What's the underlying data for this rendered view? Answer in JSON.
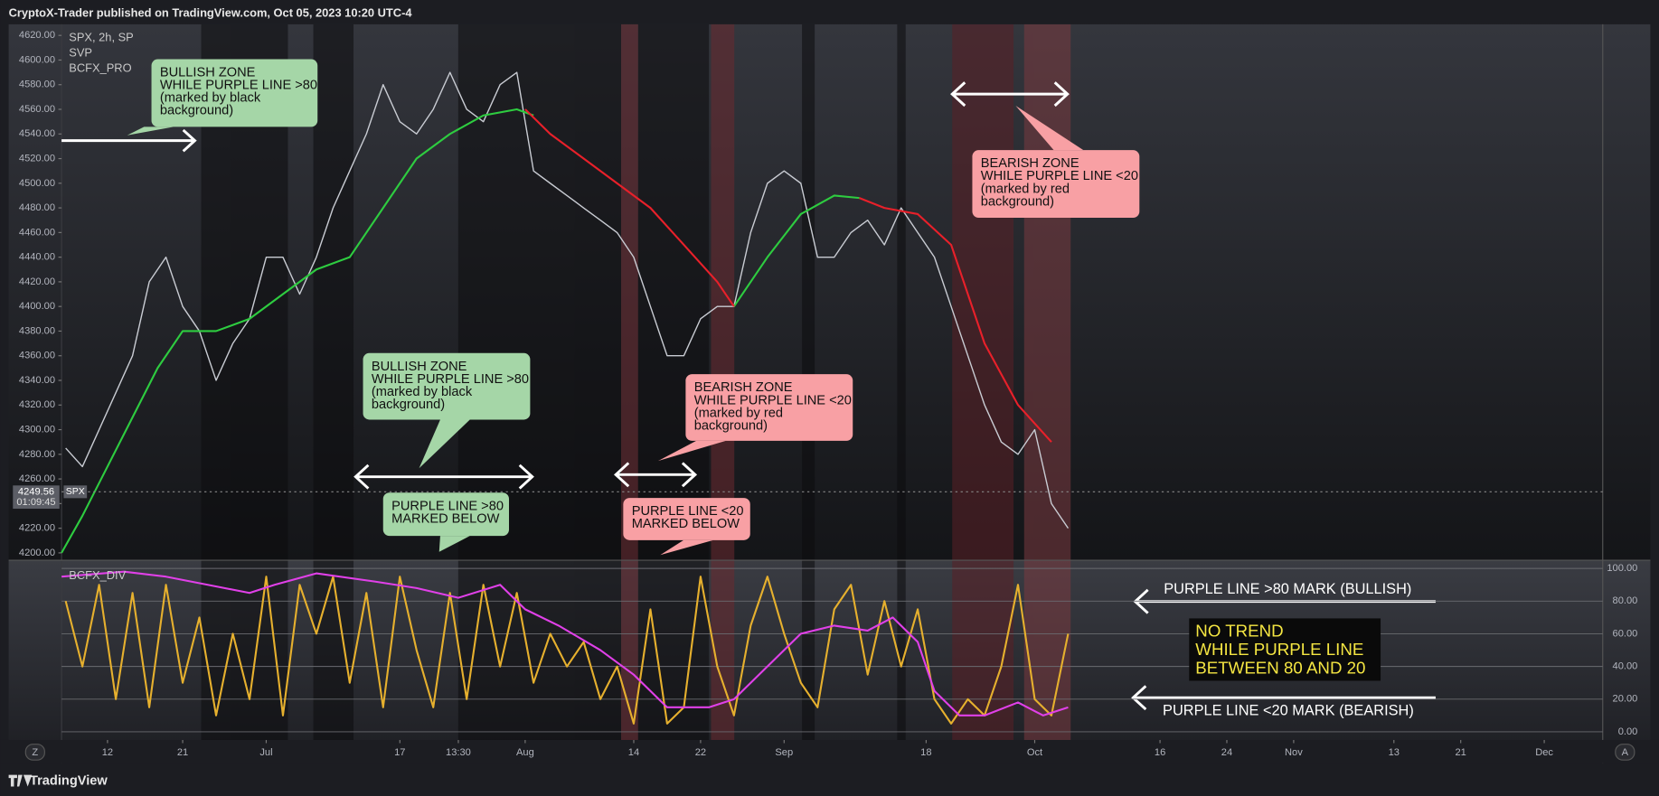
{
  "header": {
    "text": "CryptoX-Trader published on TradingView.com, Oct 05, 2023 10:20 UTC-4"
  },
  "footer": {
    "brand": "TradingView",
    "left_button": "Z",
    "right_button": "A"
  },
  "chart_data": [
    {
      "type": "line",
      "legend_lines": [
        "SPX, 2h, SP",
        "SVP",
        "BCFX_PRO"
      ],
      "xlim": [
        157.5,
        342
      ],
      "xticks": [
        {
          "value": 163,
          "label": "12"
        },
        {
          "value": 172,
          "label": "21"
        },
        {
          "value": 182,
          "label": "Jul"
        },
        {
          "value": 198,
          "label": "17"
        },
        {
          "value": 205,
          "label": "13:30"
        },
        {
          "value": 213,
          "label": "Aug"
        },
        {
          "value": 226,
          "label": "14"
        },
        {
          "value": 234,
          "label": "22"
        },
        {
          "value": 244,
          "label": "Sep"
        },
        {
          "value": 261,
          "label": "18"
        },
        {
          "value": 274,
          "label": "Oct"
        },
        {
          "value": 289,
          "label": "16"
        },
        {
          "value": 297,
          "label": "24"
        },
        {
          "value": 305,
          "label": "Nov"
        },
        {
          "value": 317,
          "label": "13"
        },
        {
          "value": 325,
          "label": "21"
        },
        {
          "value": 335,
          "label": "Dec"
        }
      ],
      "ylim": [
        4194,
        4629
      ],
      "yticks": [
        {
          "value": 4200,
          "label": "4200.00"
        },
        {
          "value": 4220,
          "label": "4220.00"
        },
        {
          "value": 4240,
          "label": "4240.00"
        },
        {
          "value": 4260,
          "label": "4260.00"
        },
        {
          "value": 4280,
          "label": "4280.00"
        },
        {
          "value": 4300,
          "label": "4300.00"
        },
        {
          "value": 4320,
          "label": "4320.00"
        },
        {
          "value": 4340,
          "label": "4340.00"
        },
        {
          "value": 4360,
          "label": "4360.00"
        },
        {
          "value": 4380,
          "label": "4380.00"
        },
        {
          "value": 4400,
          "label": "4400.00"
        },
        {
          "value": 4420,
          "label": "4420.00"
        },
        {
          "value": 4440,
          "label": "4440.00"
        },
        {
          "value": 4460,
          "label": "4460.00"
        },
        {
          "value": 4480,
          "label": "4480.00"
        },
        {
          "value": 4500,
          "label": "4500.00"
        },
        {
          "value": 4520,
          "label": "4520.00"
        },
        {
          "value": 4540,
          "label": "4540.00"
        },
        {
          "value": 4560,
          "label": "4560.00"
        },
        {
          "value": 4580,
          "label": "4580.00"
        },
        {
          "value": 4600,
          "label": "4600.00"
        },
        {
          "value": 4620,
          "label": "4620.00"
        }
      ],
      "grid": false,
      "series": [
        {
          "color": "#c9ccd3",
          "x": [
            158,
            160,
            162,
            164,
            166,
            168,
            170,
            172,
            174,
            176,
            178,
            180,
            182,
            184,
            186,
            188,
            190,
            192,
            194,
            196,
            198,
            200,
            202,
            204,
            206,
            208,
            210,
            212,
            214,
            216,
            218,
            220,
            222,
            224,
            226,
            228,
            230,
            232,
            234,
            236,
            238,
            240,
            242,
            244,
            246,
            248,
            250,
            252,
            254,
            256,
            258,
            260,
            262,
            264,
            266,
            268,
            270,
            272,
            274,
            276,
            278
          ],
          "values": [
            4285,
            4270,
            4300,
            4330,
            4360,
            4420,
            4440,
            4400,
            4380,
            4340,
            4370,
            4390,
            4440,
            4440,
            4410,
            4440,
            4480,
            4510,
            4540,
            4580,
            4550,
            4540,
            4560,
            4590,
            4560,
            4550,
            4580,
            4590,
            4510,
            4500,
            4490,
            4480,
            4470,
            4460,
            4440,
            4400,
            4360,
            4360,
            4390,
            4400,
            4400,
            4460,
            4500,
            4510,
            4500,
            4440,
            4440,
            4460,
            4470,
            4450,
            4480,
            4460,
            4440,
            4400,
            4360,
            4320,
            4290,
            4280,
            4300,
            4240,
            4220
          ]
        },
        {
          "color": "#2ecc40",
          "x": [
            157.5,
            160,
            163,
            166,
            169,
            172,
            176,
            180,
            184,
            188,
            192,
            196,
            200,
            204,
            208,
            212,
            214,
            226,
            238,
            242,
            246,
            250,
            253
          ],
          "values": [
            4200,
            4230,
            4270,
            4310,
            4350,
            4380,
            4380,
            4390,
            4410,
            4430,
            4440,
            4480,
            4520,
            4540,
            4555,
            4560,
            4555,
            null,
            4400,
            4440,
            4475,
            4490,
            4488
          ]
        },
        {
          "color": "#e8202a",
          "x": [
            213,
            216,
            220,
            224,
            228,
            232,
            236,
            238,
            245,
            253,
            256,
            260,
            264,
            268,
            272,
            276
          ],
          "values": [
            4560,
            4540,
            4520,
            4500,
            4480,
            4450,
            4420,
            4400,
            null,
            4488,
            4480,
            4475,
            4450,
            4370,
            4320,
            4290
          ]
        }
      ],
      "last_price": {
        "value": 4249.56,
        "countdown": "01:09:45",
        "symbol": "SPX"
      },
      "annotations": [
        {
          "kind": "bullish",
          "lines": [
            "BULLISH ZONE",
            "WHILE PURPLE LINE >80",
            "(marked by black",
            "background)"
          ]
        },
        {
          "kind": "bullish",
          "lines": [
            "BULLISH ZONE",
            "WHILE PURPLE LINE >80",
            "(marked by black",
            "background)"
          ]
        },
        {
          "kind": "bullish",
          "lines": [
            "PURPLE LINE  >80",
            "MARKED BELOW"
          ]
        },
        {
          "kind": "bearish",
          "lines": [
            "BEARISH ZONE",
            "WHILE PURPLE LINE <20",
            "(marked by red",
            "background)"
          ]
        },
        {
          "kind": "bearish",
          "lines": [
            "PURPLE LINE  <20",
            "MARKED BELOW"
          ]
        },
        {
          "kind": "bearish",
          "lines": [
            "BEARISH ZONE",
            "WHILE PURPLE LINE <20",
            "(marked by red",
            "background)"
          ]
        }
      ]
    },
    {
      "type": "line",
      "title": "BCFX_DIV",
      "ylim": [
        -5,
        105
      ],
      "yticks": [
        {
          "value": 0,
          "label": "0.00"
        },
        {
          "value": 20,
          "label": "20.00"
        },
        {
          "value": 40,
          "label": "40.00"
        },
        {
          "value": 60,
          "label": "60.00"
        },
        {
          "value": 80,
          "label": "80.00"
        },
        {
          "value": 100,
          "label": "100.00"
        }
      ],
      "grid": true,
      "series": [
        {
          "color": "#e6b02e",
          "x": [
            158,
            160,
            162,
            164,
            166,
            168,
            170,
            172,
            174,
            176,
            178,
            180,
            182,
            184,
            186,
            188,
            190,
            192,
            194,
            196,
            198,
            200,
            202,
            204,
            206,
            208,
            210,
            212,
            214,
            216,
            218,
            220,
            222,
            224,
            226,
            228,
            230,
            232,
            234,
            236,
            238,
            240,
            242,
            244,
            246,
            248,
            250,
            252,
            254,
            256,
            258,
            260,
            262,
            264,
            266,
            268,
            270,
            272,
            274,
            276,
            278
          ],
          "values": [
            80,
            40,
            90,
            20,
            85,
            15,
            90,
            30,
            70,
            10,
            60,
            20,
            95,
            10,
            90,
            60,
            95,
            30,
            85,
            15,
            95,
            50,
            15,
            85,
            20,
            90,
            40,
            85,
            30,
            60,
            40,
            55,
            20,
            40,
            5,
            75,
            5,
            15,
            95,
            40,
            10,
            65,
            95,
            60,
            30,
            15,
            75,
            90,
            35,
            80,
            40,
            75,
            20,
            5,
            20,
            10,
            40,
            90,
            20,
            10,
            60
          ]
        },
        {
          "color": "#e040e8",
          "x": [
            157.5,
            165,
            170,
            175,
            180,
            183,
            188,
            195,
            200,
            205,
            210,
            213,
            217,
            222,
            226,
            230,
            235,
            238,
            242,
            246,
            250,
            254,
            257,
            260,
            262,
            265,
            268,
            272,
            275,
            278
          ],
          "values": [
            95,
            98,
            95,
            90,
            85,
            90,
            97,
            92,
            88,
            82,
            90,
            75,
            65,
            50,
            35,
            15,
            15,
            20,
            40,
            60,
            65,
            62,
            70,
            55,
            25,
            10,
            10,
            18,
            10,
            15
          ]
        }
      ],
      "annotations": [
        {
          "kind": "label",
          "lines": [
            "PURPLE LINE >80 MARK (BULLISH)"
          ]
        },
        {
          "kind": "label",
          "lines": [
            "PURPLE LINE <20 MARK (BEARISH)"
          ]
        },
        {
          "kind": "box",
          "lines": [
            "NO TREND",
            "WHILE PURPLE LINE",
            "BETWEEN 80 AND 20"
          ]
        }
      ]
    }
  ]
}
